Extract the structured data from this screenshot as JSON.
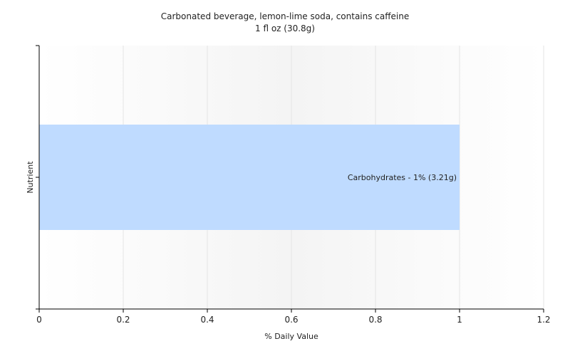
{
  "chart_data": {
    "type": "bar",
    "orientation": "horizontal",
    "title": "Carbonated beverage, lemon-lime soda, contains caffeine",
    "subtitle": "1 fl oz (30.8g)",
    "xlabel": "% Daily Value",
    "ylabel": "Nutrient",
    "xlim": [
      0,
      1.2
    ],
    "xticks": [
      "0",
      "0.2",
      "0.4",
      "0.6",
      "0.8",
      "1",
      "1.2"
    ],
    "grid": true,
    "bars": [
      {
        "label": "Carbohydrates - 1% (3.21g)",
        "value": 1
      }
    ],
    "colors": {
      "bar": "#bfdbff",
      "plot_background": "#f7f7f7",
      "grid": "#e4e4e4",
      "axis": "#000000"
    }
  }
}
